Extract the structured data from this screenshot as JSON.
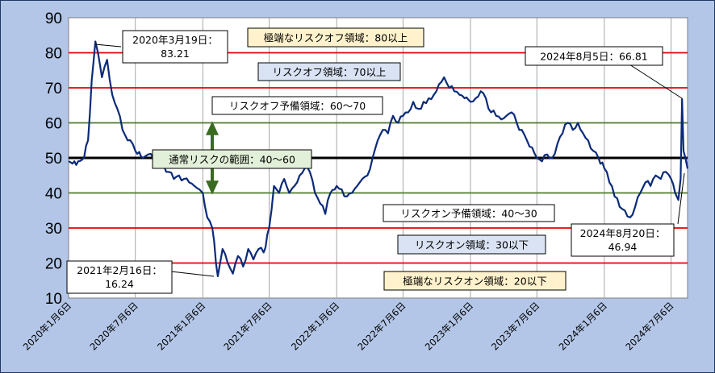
{
  "chart_data": {
    "type": "line",
    "title": "",
    "xlabel": "",
    "ylabel": "",
    "ylim": [
      10,
      90
    ],
    "y_ticks": [
      10,
      20,
      30,
      40,
      50,
      60,
      70,
      80,
      90
    ],
    "x_ticks": [
      "2020年1月6日",
      "2020年7月6日",
      "2021年1月6日",
      "2021年7月6日",
      "2022年1月6日",
      "2022年7月6日",
      "2023年1月6日",
      "2023年7月6日",
      "2024年1月6日",
      "2024年7月6日"
    ],
    "grid": true,
    "reference_lines": [
      {
        "value": 80,
        "color": "#e60000"
      },
      {
        "value": 70,
        "color": "#e60000"
      },
      {
        "value": 60,
        "color": "#4e7a2b"
      },
      {
        "value": 50,
        "color": "#000000"
      },
      {
        "value": 40,
        "color": "#4e7a2b"
      },
      {
        "value": 30,
        "color": "#e60000"
      },
      {
        "value": 20,
        "color": "#e60000"
      }
    ],
    "series": [
      {
        "color": "#0b2a78",
        "points": [
          [
            "2020-01-06",
            49
          ],
          [
            "2020-01-27",
            48
          ],
          [
            "2020-02-17",
            50
          ],
          [
            "2020-02-28",
            55
          ],
          [
            "2020-03-09",
            72
          ],
          [
            "2020-03-19",
            83.21
          ],
          [
            "2020-03-26",
            80
          ],
          [
            "2020-04-06",
            73
          ],
          [
            "2020-04-20",
            78
          ],
          [
            "2020-05-04",
            68
          ],
          [
            "2020-05-18",
            64
          ],
          [
            "2020-06-01",
            58
          ],
          [
            "2020-06-15",
            55
          ],
          [
            "2020-06-29",
            54
          ],
          [
            "2020-07-06",
            52
          ],
          [
            "2020-07-27",
            50
          ],
          [
            "2020-08-10",
            51
          ],
          [
            "2020-08-24",
            50
          ],
          [
            "2020-09-07",
            52
          ],
          [
            "2020-09-21",
            48
          ],
          [
            "2020-10-05",
            46
          ],
          [
            "2020-10-19",
            44
          ],
          [
            "2020-11-02",
            45
          ],
          [
            "2020-11-16",
            44
          ],
          [
            "2020-11-30",
            43
          ],
          [
            "2020-12-14",
            42
          ],
          [
            "2020-12-28",
            41
          ],
          [
            "2021-01-06",
            40
          ],
          [
            "2021-01-18",
            33
          ],
          [
            "2021-02-01",
            30
          ],
          [
            "2021-02-16",
            16.24
          ],
          [
            "2021-03-01",
            24
          ],
          [
            "2021-03-15",
            20
          ],
          [
            "2021-03-29",
            17
          ],
          [
            "2021-04-12",
            22
          ],
          [
            "2021-04-26",
            19
          ],
          [
            "2021-05-10",
            24
          ],
          [
            "2021-05-24",
            21
          ],
          [
            "2021-06-07",
            24
          ],
          [
            "2021-06-21",
            23
          ],
          [
            "2021-07-06",
            30
          ],
          [
            "2021-07-19",
            42
          ],
          [
            "2021-08-02",
            40
          ],
          [
            "2021-08-16",
            44
          ],
          [
            "2021-08-30",
            40
          ],
          [
            "2021-09-13",
            42
          ],
          [
            "2021-09-27",
            45
          ],
          [
            "2021-10-11",
            47
          ],
          [
            "2021-10-25",
            46
          ],
          [
            "2021-11-08",
            40
          ],
          [
            "2021-11-22",
            37
          ],
          [
            "2021-12-06",
            34
          ],
          [
            "2021-12-20",
            40
          ],
          [
            "2022-01-06",
            42
          ],
          [
            "2022-01-20",
            41
          ],
          [
            "2022-02-03",
            39
          ],
          [
            "2022-02-17",
            40
          ],
          [
            "2022-03-03",
            42
          ],
          [
            "2022-03-17",
            44
          ],
          [
            "2022-03-31",
            45
          ],
          [
            "2022-04-14",
            50
          ],
          [
            "2022-04-28",
            55
          ],
          [
            "2022-05-12",
            58
          ],
          [
            "2022-05-26",
            57
          ],
          [
            "2022-06-09",
            62
          ],
          [
            "2022-06-23",
            60
          ],
          [
            "2022-07-06",
            62
          ],
          [
            "2022-07-20",
            63
          ],
          [
            "2022-08-03",
            66
          ],
          [
            "2022-08-17",
            64
          ],
          [
            "2022-08-31",
            66
          ],
          [
            "2022-09-14",
            67
          ],
          [
            "2022-09-28",
            68
          ],
          [
            "2022-10-12",
            71
          ],
          [
            "2022-10-26",
            73
          ],
          [
            "2022-11-09",
            70
          ],
          [
            "2022-11-23",
            69
          ],
          [
            "2022-12-07",
            68
          ],
          [
            "2022-12-21",
            67
          ],
          [
            "2023-01-06",
            66
          ],
          [
            "2023-01-20",
            67
          ],
          [
            "2023-02-03",
            69
          ],
          [
            "2023-02-17",
            67
          ],
          [
            "2023-03-03",
            63
          ],
          [
            "2023-03-17",
            62
          ],
          [
            "2023-03-31",
            61
          ],
          [
            "2023-04-14",
            62
          ],
          [
            "2023-04-28",
            63
          ],
          [
            "2023-05-12",
            60
          ],
          [
            "2023-05-26",
            58
          ],
          [
            "2023-06-09",
            55
          ],
          [
            "2023-06-23",
            53
          ],
          [
            "2023-07-06",
            50
          ],
          [
            "2023-07-20",
            49
          ],
          [
            "2023-08-03",
            51
          ],
          [
            "2023-08-17",
            50
          ],
          [
            "2023-08-31",
            54
          ],
          [
            "2023-09-14",
            57
          ],
          [
            "2023-09-28",
            60
          ],
          [
            "2023-10-12",
            58
          ],
          [
            "2023-10-26",
            60
          ],
          [
            "2023-11-09",
            57
          ],
          [
            "2023-11-23",
            55
          ],
          [
            "2023-12-07",
            52
          ],
          [
            "2023-12-21",
            50
          ],
          [
            "2024-01-06",
            47
          ],
          [
            "2024-01-20",
            43
          ],
          [
            "2024-02-03",
            39
          ],
          [
            "2024-02-17",
            36
          ],
          [
            "2024-03-02",
            35
          ],
          [
            "2024-03-16",
            33
          ],
          [
            "2024-03-30",
            36
          ],
          [
            "2024-04-13",
            40
          ],
          [
            "2024-04-27",
            43
          ],
          [
            "2024-05-11",
            42
          ],
          [
            "2024-05-25",
            45
          ],
          [
            "2024-06-08",
            44
          ],
          [
            "2024-06-22",
            46
          ],
          [
            "2024-07-06",
            44
          ],
          [
            "2024-07-17",
            40
          ],
          [
            "2024-07-26",
            38
          ],
          [
            "2024-08-01",
            44
          ],
          [
            "2024-08-05",
            66.81
          ],
          [
            "2024-08-09",
            52
          ],
          [
            "2024-08-14",
            50
          ],
          [
            "2024-08-20",
            46.94
          ]
        ]
      }
    ],
    "annotations": [
      {
        "text": "極端なリスクオフ領域：80以上",
        "bg": "#fff2cc"
      },
      {
        "text": "リスクオフ領域：70以上",
        "bg": "#dae3f3"
      },
      {
        "text": "リスクオフ予備領域：60～70",
        "bg": "#ffffff"
      },
      {
        "text": "通常リスクの範囲：40～60",
        "bg": "#e2f0d9"
      },
      {
        "text": "リスクオン予備領域：40～30",
        "bg": "#ffffff"
      },
      {
        "text": "リスクオン領域：30以下",
        "bg": "#dae3f3"
      },
      {
        "text": "極端なリスクオン領域：20以下",
        "bg": "#fff2cc"
      },
      {
        "text": "2020年3月19日：",
        "text2": "83.21",
        "bg": "#ffffff"
      },
      {
        "text": "2021年2月16日：",
        "text2": "16.24",
        "bg": "#ffffff"
      },
      {
        "text": "2024年8月5日：66.81",
        "bg": "#ffffff"
      },
      {
        "text": "2024年8月20日：",
        "text2": "46.94",
        "bg": "#ffffff"
      }
    ]
  }
}
